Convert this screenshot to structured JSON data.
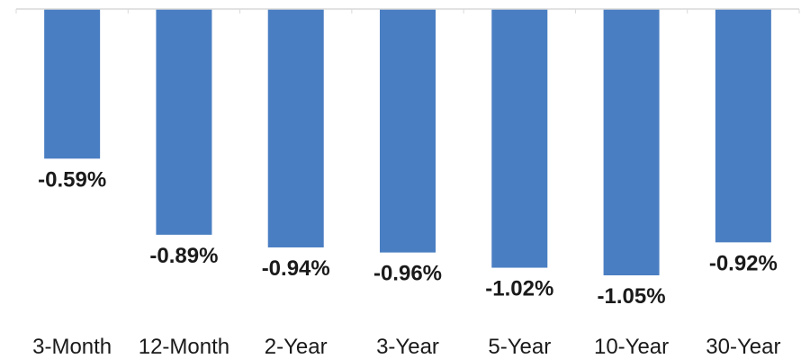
{
  "chart_data": {
    "type": "bar",
    "categories": [
      "3-Month",
      "12-Month",
      "2-Year",
      "3-Year",
      "5-Year",
      "10-Year",
      "30-Year"
    ],
    "values": [
      -0.59,
      -0.89,
      -0.94,
      -0.96,
      -1.02,
      -1.05,
      -0.92
    ],
    "data_labels": [
      "-0.59%",
      "-0.89%",
      "-0.94%",
      "-0.96%",
      "-1.02%",
      "-1.05%",
      "-0.92%"
    ],
    "title": "",
    "xlabel": "",
    "ylabel": "",
    "ylim": [
      -1.05,
      0
    ],
    "grid": false,
    "legend": "none",
    "bar_color": "#4a7ec2"
  }
}
